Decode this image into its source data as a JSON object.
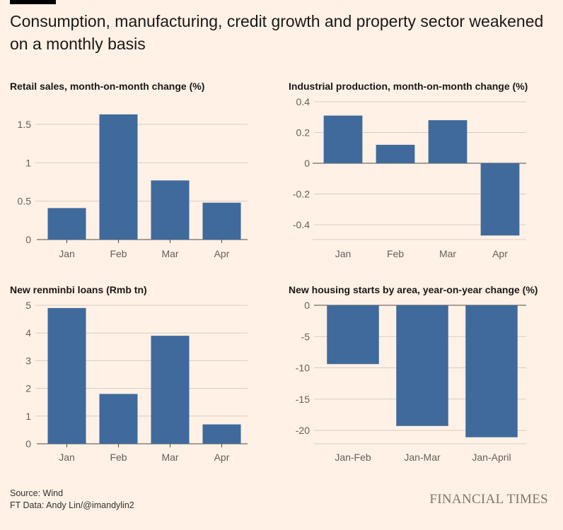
{
  "headline": "Consumption, manufacturing, credit growth and property sector weakened on a monthly basis",
  "chart_data": [
    {
      "type": "bar",
      "title": "Retail sales, month-on-month change (%)",
      "categories": [
        "Jan",
        "Feb",
        "Mar",
        "Apr"
      ],
      "values": [
        0.41,
        1.63,
        0.77,
        0.48
      ],
      "ylim": [
        0,
        1.5
      ],
      "yticks": [
        0,
        0.5,
        1,
        1.5
      ],
      "ytick_labels": [
        "0",
        "0.5",
        "1",
        "1.5"
      ],
      "xlabel": "",
      "ylabel": ""
    },
    {
      "type": "bar",
      "title": "Industrial production, month-on-month change (%)",
      "categories": [
        "Jan",
        "Feb",
        "Mar",
        "Apr"
      ],
      "values": [
        0.31,
        0.12,
        0.28,
        -0.47
      ],
      "ylim": [
        -0.4,
        0.4
      ],
      "yticks": [
        -0.4,
        -0.2,
        0,
        0.2,
        0.4
      ],
      "ytick_labels": [
        "-0.4",
        "-0.2",
        "0",
        "0.2",
        "0.4"
      ],
      "xlabel": "",
      "ylabel": ""
    },
    {
      "type": "bar",
      "title": "New renminbi loans (Rmb tn)",
      "categories": [
        "Jan",
        "Feb",
        "Mar",
        "Apr"
      ],
      "values": [
        4.9,
        1.8,
        3.9,
        0.7
      ],
      "ylim": [
        0,
        5
      ],
      "yticks": [
        0,
        1,
        2,
        3,
        4,
        5
      ],
      "ytick_labels": [
        "0",
        "1",
        "2",
        "3",
        "4",
        "5"
      ],
      "xlabel": "",
      "ylabel": ""
    },
    {
      "type": "bar",
      "title": "New housing starts by area, year-on-year change (%)",
      "categories": [
        "Jan-Feb",
        "Jan-Mar",
        "Jan-April"
      ],
      "values": [
        -9.4,
        -19.3,
        -21.1
      ],
      "ylim": [
        -20,
        0
      ],
      "yticks": [
        -20,
        -15,
        -10,
        -5,
        0
      ],
      "ytick_labels": [
        "-20",
        "-15",
        "-10",
        "-5",
        "0"
      ],
      "xlabel": "",
      "ylabel": ""
    }
  ],
  "footer": {
    "source": "Source: Wind",
    "credit": "FT Data: Andy Lin/@imandylin2",
    "brand": "FINANCIAL TIMES"
  },
  "colors": {
    "bar": "#3f6a9b",
    "background": "#fff1e5"
  }
}
